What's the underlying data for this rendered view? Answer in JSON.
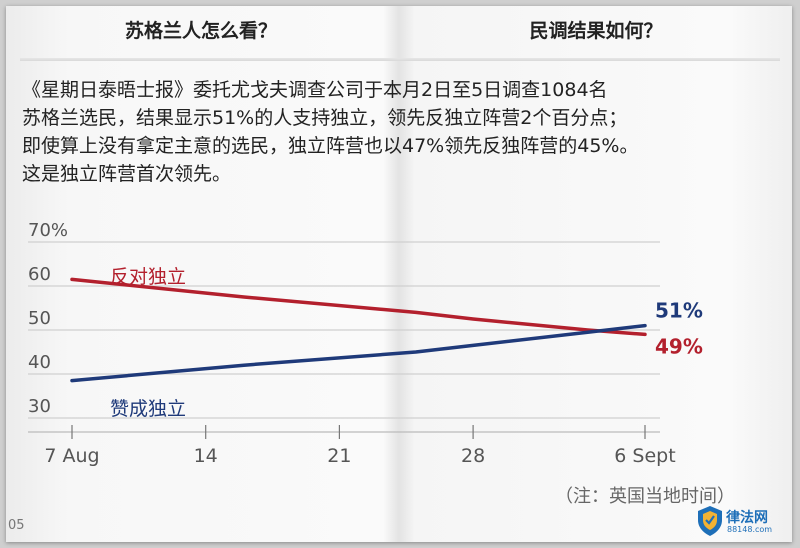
{
  "header": {
    "left_title": "苏格兰人怎么看？",
    "right_title": "民调结果如何？"
  },
  "body": {
    "lines": [
      "《星期日泰晤士报》委托尤戈夫调查公司于本月2日至5日调查1084名",
      "苏格兰选民，结果显示51%的人支持独立，领先反独立阵营2个百分点；",
      "即使算上没有拿定主意的选民，独立阵营也以47%领先反独阵营的45%。",
      "这是独立阵营首次领先。"
    ]
  },
  "note": "（注：英国当地时间）",
  "page_number": "05",
  "logo": {
    "text": "律法网",
    "sub": "88148.com"
  },
  "colors": {
    "against": "#b3202d",
    "support": "#1f3a7a",
    "grid": "#d0d0d0",
    "axis_text": "#555555"
  },
  "chart_data": {
    "type": "line",
    "x_labels": [
      "7 Aug",
      "14",
      "21",
      "28",
      "6 Sept"
    ],
    "x": [
      7,
      14,
      21,
      28,
      37
    ],
    "xlim": [
      7,
      37
    ],
    "ylim": [
      30,
      70
    ],
    "y_ticks": [
      30,
      40,
      50,
      60,
      70
    ],
    "y_tick_labels": [
      "30",
      "40",
      "50",
      "60",
      "70%"
    ],
    "grid": true,
    "series": [
      {
        "name": "反对独立",
        "x": [
          7,
          16,
          25,
          28,
          34,
          37
        ],
        "values": [
          61.5,
          57.5,
          54,
          52.5,
          50,
          49
        ],
        "end_label": "49%",
        "color": "#b3202d"
      },
      {
        "name": "赞成独立",
        "x": [
          7,
          16,
          25,
          28,
          34,
          37
        ],
        "values": [
          38.5,
          42,
          45,
          46.5,
          49.5,
          51
        ],
        "end_label": "51%",
        "color": "#1f3a7a"
      }
    ]
  }
}
